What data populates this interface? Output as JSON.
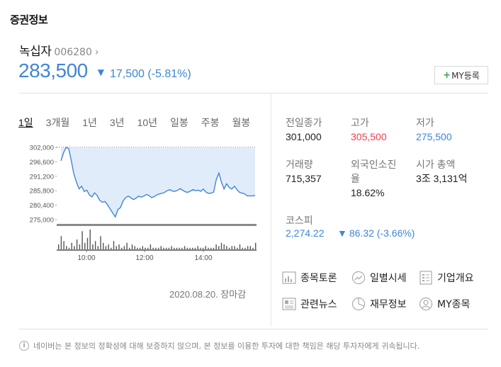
{
  "section_title": "증권정보",
  "stock": {
    "name": "녹십자",
    "code": "006280",
    "arrow": "›",
    "price": "283,500",
    "change_arrow": "▼",
    "change": "17,500 (-5.81%)"
  },
  "my_button": {
    "plus": "+",
    "label": "MY등록"
  },
  "period_tabs": [
    "1일",
    "3개월",
    "1년",
    "3년",
    "10년",
    "일봉",
    "주봉",
    "월봉"
  ],
  "chart_data": {
    "type": "line",
    "y_ticks": [
      "302,000",
      "296,600",
      "291,200",
      "285,800",
      "280,400",
      "275,000"
    ],
    "ylim": [
      275000,
      302000
    ],
    "x_ticks": [
      "10:00",
      "12:00",
      "14:00"
    ],
    "prev_close": 301000,
    "series": [
      {
        "values": [
          297000,
          300000,
          302000,
          301500,
          297000,
          292000,
          289000,
          286500,
          287500,
          285500,
          286000,
          284200,
          283500,
          285000,
          284000,
          282200,
          281500,
          281800,
          280500,
          279000,
          277500,
          276000,
          278800,
          279500,
          282000,
          283200,
          283800,
          283200,
          282500,
          283000,
          283800,
          283400,
          283800,
          284400,
          284000,
          283200,
          283600,
          284200,
          284600,
          284800,
          285200,
          285800,
          286200,
          285700,
          285600,
          285900,
          286600,
          286000,
          285400,
          285200,
          285700,
          286200,
          285800,
          286000,
          285600,
          286400,
          285300,
          284800,
          284900,
          285300,
          290000,
          292400,
          289000,
          286500,
          288400,
          287000,
          286400,
          287500,
          286200,
          285200,
          284900,
          284600,
          283900,
          283900,
          283900,
          284000
        ]
      }
    ],
    "volume": [
      3,
      8,
      5,
      2,
      1,
      4,
      2,
      6,
      3,
      11,
      4,
      7,
      12,
      3,
      5,
      2,
      8,
      4,
      2,
      3,
      1,
      5,
      2,
      3,
      1,
      2,
      4,
      1,
      3,
      2,
      1,
      1,
      2,
      1,
      1,
      3,
      1,
      1,
      1,
      2,
      1,
      1,
      1,
      2,
      1,
      1,
      1,
      1,
      2,
      1,
      1,
      1,
      1,
      2,
      1,
      1,
      2,
      1,
      1,
      1,
      3,
      2,
      4,
      3,
      2,
      1,
      2,
      2,
      1,
      3,
      1,
      1,
      2,
      2,
      1,
      4
    ],
    "date": "2020.08.20. 장마감"
  },
  "info": {
    "prev_close": {
      "label": "전일종가",
      "value": "301,000"
    },
    "high": {
      "label": "고가",
      "value": "305,500"
    },
    "low": {
      "label": "저가",
      "value": "275,500"
    },
    "volume": {
      "label": "거래량",
      "value": "715,357"
    },
    "foreign": {
      "label1": "외국인소진",
      "label2": "율",
      "value": "18.62%"
    },
    "market_cap": {
      "label": "시가 총액",
      "value": "3조 3,131억"
    },
    "kospi": {
      "label": "코스피",
      "value": "2,274.22",
      "arrow": "▼",
      "change": "86.32 (-3.66%)"
    }
  },
  "links": {
    "discussion": "종목토론",
    "daily": "일별시세",
    "company": "기업개요",
    "news": "관련뉴스",
    "financial": "재무정보",
    "my": "MY종목"
  },
  "disclaimer": {
    "icon": "i",
    "text": "네이버는 본 정보의 정확성에 대해 보증하지 않으며, 본 정보를 이용한 투자에 대한 책임은 해당 투자자에게 귀속됩니다."
  },
  "colors": {
    "up": "#e8414d",
    "down": "#3f86d6",
    "chart_fill": "#e1ecfb",
    "chart_line": "#3f86d6"
  }
}
